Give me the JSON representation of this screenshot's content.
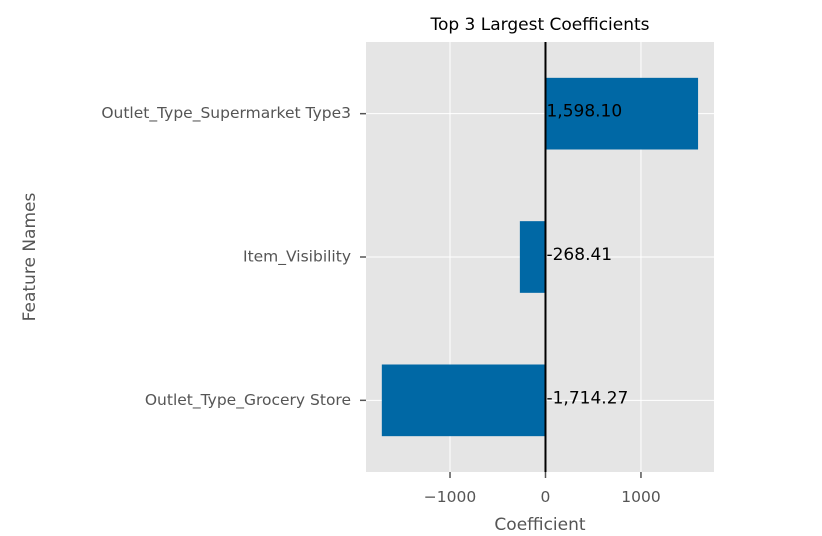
{
  "chart_data": {
    "type": "bar",
    "orientation": "horizontal",
    "title": "Top 3 Largest Coefficients",
    "xlabel": "Coefficient",
    "ylabel": "Feature Names",
    "categories": [
      "Outlet_Type_Supermarket Type3",
      "Item_Visibility",
      "Outlet_Type_Grocery Store"
    ],
    "values": [
      1598.1,
      -268.41,
      -1714.27
    ],
    "data_labels": [
      "1,598.10",
      "-268.41",
      "-1,714.27"
    ],
    "xlim": [
      -1880,
      1765
    ],
    "xticks": [
      -1000,
      0,
      1000
    ],
    "xtick_labels": [
      "−1000",
      "0",
      "1000"
    ],
    "grid": true,
    "zero_line": true,
    "bar_color": "#0068a5",
    "plot_background": "#e5e5e5",
    "grid_color": "#ffffff"
  }
}
